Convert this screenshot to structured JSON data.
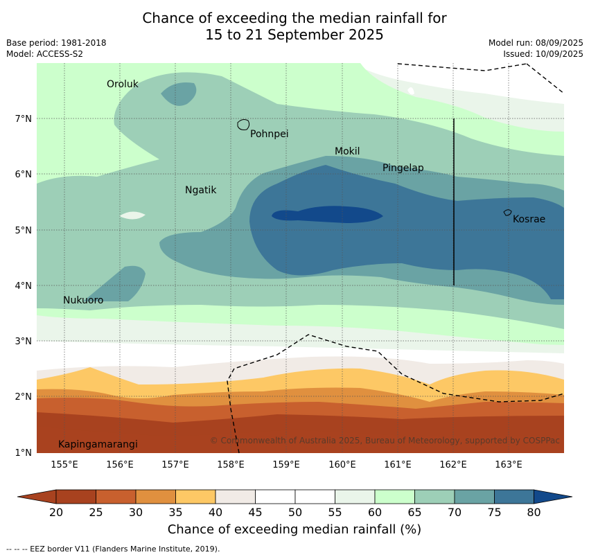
{
  "title": {
    "line1": "Chance of exceeding the median rainfall for",
    "line2": "15 to 21 September 2025"
  },
  "meta": {
    "base_period": "Base period: 1981-2018",
    "model": "Model: ACCESS-S2",
    "model_run": "Model run: 08/09/2025",
    "issued": "Issued: 10/09/2025"
  },
  "map": {
    "lon_ticks": [
      "155°E",
      "156°E",
      "157°E",
      "158°E",
      "159°E",
      "160°E",
      "161°E",
      "162°E",
      "163°E"
    ],
    "lat_ticks": [
      "7°N",
      "6°N",
      "5°N",
      "4°N",
      "3°N",
      "2°N",
      "1°N"
    ],
    "places": [
      "Oroluk",
      "Pohnpei",
      "Mokil",
      "Pingelap",
      "Ngatik",
      "Kosrae",
      "Nukuoro",
      "Kapingamarangi"
    ],
    "copyright": "© Commonwealth of Australia 2025, Bureau of Meteorology, supported by COSPPac",
    "palette": [
      "#a8421f",
      "#c8602e",
      "#e0903f",
      "#fdc865",
      "#f1ebe6",
      "#ffffff",
      "#ffffff",
      "#eaf5ea",
      "#ccffcc",
      "#9dcfb7",
      "#6aa3a4",
      "#3d7698",
      "#12498b"
    ]
  },
  "colorbar": {
    "ticks": [
      "20",
      "25",
      "30",
      "35",
      "40",
      "45",
      "50",
      "55",
      "60",
      "65",
      "70",
      "75",
      "80"
    ],
    "label": "Chance of exceeding median rainfall (%)"
  },
  "footer": "--  --  -- EEZ border V11 (Flanders Marine Institute, 2019)."
}
